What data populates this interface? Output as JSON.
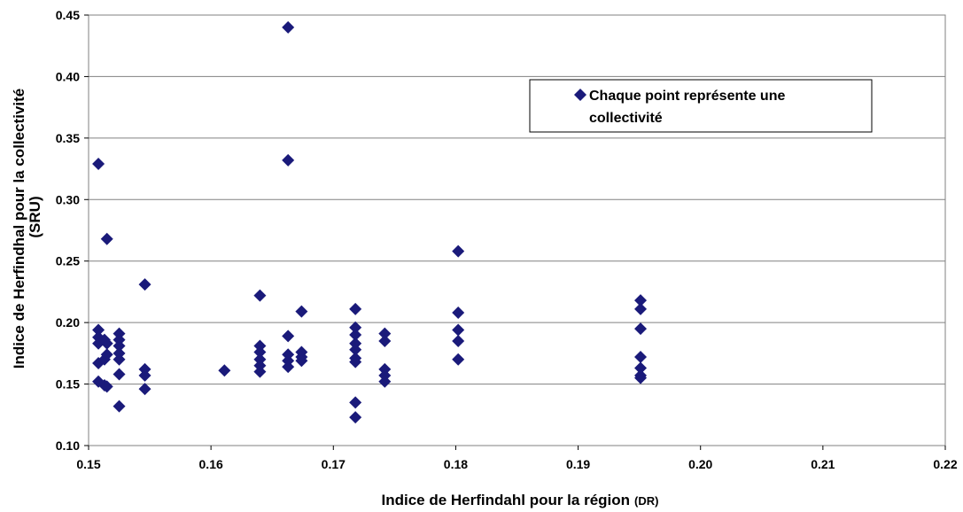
{
  "chart_data": {
    "type": "scatter",
    "xlabel": "Indice de Herfindahl pour la région",
    "xlabel_unit": "(DR)",
    "ylabel_line1": "Indice de Herfindhal pour la collectivité",
    "ylabel_line2": "(SRU)",
    "xlim": [
      0.15,
      0.22
    ],
    "ylim": [
      0.1,
      0.45
    ],
    "x_ticks": [
      "0.15",
      "0.16",
      "0.17",
      "0.18",
      "0.19",
      "0.20",
      "0.21",
      "0.22"
    ],
    "y_ticks": [
      "0.10",
      "0.15",
      "0.20",
      "0.25",
      "0.30",
      "0.35",
      "0.40",
      "0.45"
    ],
    "grid": "horizontal",
    "legend": {
      "position": "top-right",
      "line1": "Chaque point représente une",
      "line2": "collectivité"
    },
    "marker_color": "#1a1a7a",
    "series": [
      {
        "points": [
          [
            0.1508,
            0.329
          ],
          [
            0.1508,
            0.194
          ],
          [
            0.1508,
            0.188
          ],
          [
            0.1508,
            0.183
          ],
          [
            0.1508,
            0.167
          ],
          [
            0.1508,
            0.152
          ],
          [
            0.1513,
            0.186
          ],
          [
            0.1513,
            0.17
          ],
          [
            0.1513,
            0.149
          ],
          [
            0.1515,
            0.268
          ],
          [
            0.1515,
            0.183
          ],
          [
            0.1515,
            0.174
          ],
          [
            0.1515,
            0.148
          ],
          [
            0.1525,
            0.191
          ],
          [
            0.1525,
            0.186
          ],
          [
            0.1525,
            0.181
          ],
          [
            0.1525,
            0.175
          ],
          [
            0.1525,
            0.17
          ],
          [
            0.1525,
            0.158
          ],
          [
            0.1525,
            0.132
          ],
          [
            0.1546,
            0.231
          ],
          [
            0.1546,
            0.162
          ],
          [
            0.1546,
            0.157
          ],
          [
            0.1546,
            0.146
          ],
          [
            0.1611,
            0.161
          ],
          [
            0.164,
            0.222
          ],
          [
            0.164,
            0.181
          ],
          [
            0.164,
            0.176
          ],
          [
            0.164,
            0.17
          ],
          [
            0.164,
            0.165
          ],
          [
            0.164,
            0.16
          ],
          [
            0.1663,
            0.44
          ],
          [
            0.1663,
            0.332
          ],
          [
            0.1663,
            0.189
          ],
          [
            0.1663,
            0.174
          ],
          [
            0.1663,
            0.169
          ],
          [
            0.1663,
            0.164
          ],
          [
            0.1674,
            0.209
          ],
          [
            0.1674,
            0.176
          ],
          [
            0.1674,
            0.172
          ],
          [
            0.1674,
            0.169
          ],
          [
            0.1718,
            0.211
          ],
          [
            0.1718,
            0.196
          ],
          [
            0.1718,
            0.19
          ],
          [
            0.1718,
            0.183
          ],
          [
            0.1718,
            0.178
          ],
          [
            0.1718,
            0.171
          ],
          [
            0.1718,
            0.168
          ],
          [
            0.1718,
            0.135
          ],
          [
            0.1718,
            0.123
          ],
          [
            0.1742,
            0.191
          ],
          [
            0.1742,
            0.185
          ],
          [
            0.1742,
            0.162
          ],
          [
            0.1742,
            0.157
          ],
          [
            0.1742,
            0.152
          ],
          [
            0.1802,
            0.258
          ],
          [
            0.1802,
            0.208
          ],
          [
            0.1802,
            0.194
          ],
          [
            0.1802,
            0.185
          ],
          [
            0.1802,
            0.17
          ],
          [
            0.1951,
            0.218
          ],
          [
            0.1951,
            0.211
          ],
          [
            0.1951,
            0.195
          ],
          [
            0.1951,
            0.172
          ],
          [
            0.1951,
            0.163
          ],
          [
            0.1951,
            0.157
          ],
          [
            0.1951,
            0.155
          ]
        ]
      }
    ]
  }
}
